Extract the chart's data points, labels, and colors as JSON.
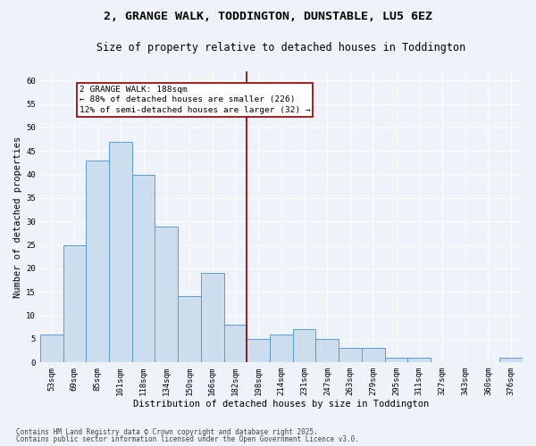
{
  "title_line1": "2, GRANGE WALK, TODDINGTON, DUNSTABLE, LU5 6EZ",
  "title_line2": "Size of property relative to detached houses in Toddington",
  "xlabel": "Distribution of detached houses by size in Toddington",
  "ylabel": "Number of detached properties",
  "footnote1": "Contains HM Land Registry data © Crown copyright and database right 2025.",
  "footnote2": "Contains public sector information licensed under the Open Government Licence v3.0.",
  "annotation_title": "2 GRANGE WALK: 188sqm",
  "annotation_line2": "← 88% of detached houses are smaller (226)",
  "annotation_line3": "12% of semi-detached houses are larger (32) →",
  "bar_color": "#ccdded",
  "bar_edge_color": "#5b9bd5",
  "vline_color": "#8b0000",
  "categories": [
    "53sqm",
    "69sqm",
    "85sqm",
    "101sqm",
    "118sqm",
    "134sqm",
    "150sqm",
    "166sqm",
    "182sqm",
    "198sqm",
    "214sqm",
    "231sqm",
    "247sqm",
    "263sqm",
    "279sqm",
    "295sqm",
    "311sqm",
    "327sqm",
    "343sqm",
    "360sqm",
    "376sqm"
  ],
  "values": [
    6,
    25,
    43,
    47,
    40,
    29,
    14,
    19,
    8,
    5,
    6,
    7,
    5,
    3,
    3,
    1,
    1,
    0,
    0,
    0,
    1
  ],
  "vline_position": 8.5,
  "ylim": [
    0,
    62
  ],
  "yticks": [
    0,
    5,
    10,
    15,
    20,
    25,
    30,
    35,
    40,
    45,
    50,
    55,
    60
  ],
  "background_color": "#eef2f9",
  "grid_color": "#ffffff",
  "title_fontsize": 9.5,
  "subtitle_fontsize": 8.5,
  "axis_label_fontsize": 7.5,
  "tick_fontsize": 6.5,
  "annotation_fontsize": 6.8,
  "footnote_fontsize": 5.5
}
